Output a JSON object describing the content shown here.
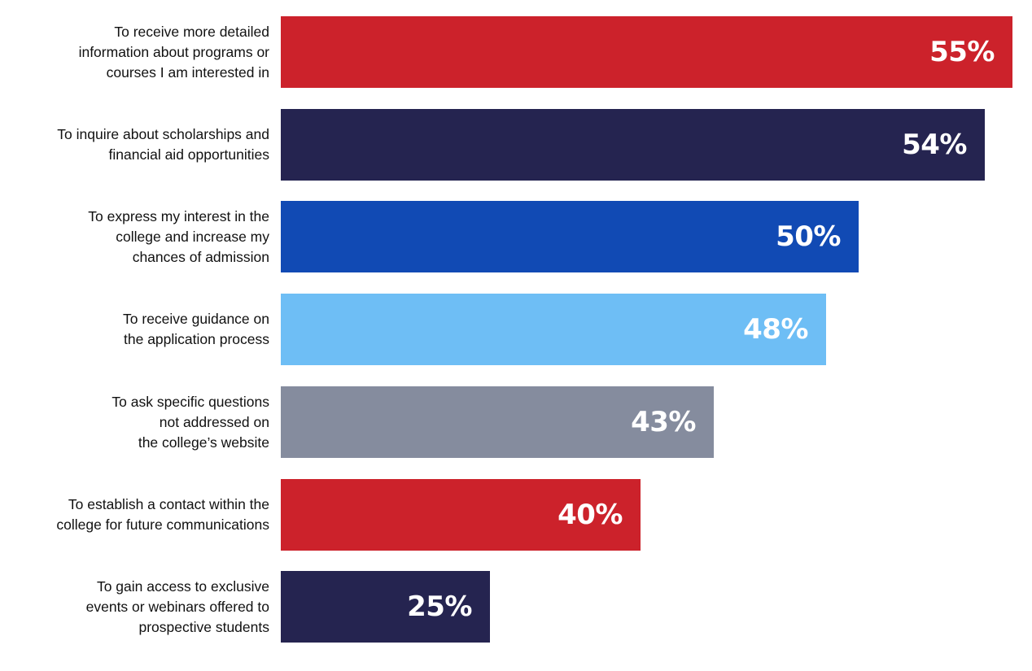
{
  "chart_data": {
    "type": "bar",
    "orientation": "horizontal",
    "title": "",
    "xlabel": "",
    "ylabel": "",
    "categories": [
      "To receive more detailed\ninformation about programs or\ncourses I am interested in",
      "To inquire about scholarships and\nfinancial aid opportunities",
      "To express my interest in the\ncollege and increase my\nchances of admission",
      "To receive guidance on\nthe application process",
      "To ask specific questions\nnot addressed on\nthe college’s website",
      "To establish a contact within the\ncollege for future communications",
      "To gain access to exclusive\nevents or webinars offered to\nprospective students"
    ],
    "values": [
      55,
      54,
      50,
      48,
      43,
      40,
      25
    ],
    "value_labels": [
      "55%",
      "54%",
      "50%",
      "48%",
      "43%",
      "40%",
      "25%"
    ],
    "colors": [
      "#cc222b",
      "#252450",
      "#114ab4",
      "#6ebef5",
      "#858c9e",
      "#cc222b",
      "#252450"
    ],
    "unit": "%",
    "grid": false,
    "legend": "none"
  }
}
